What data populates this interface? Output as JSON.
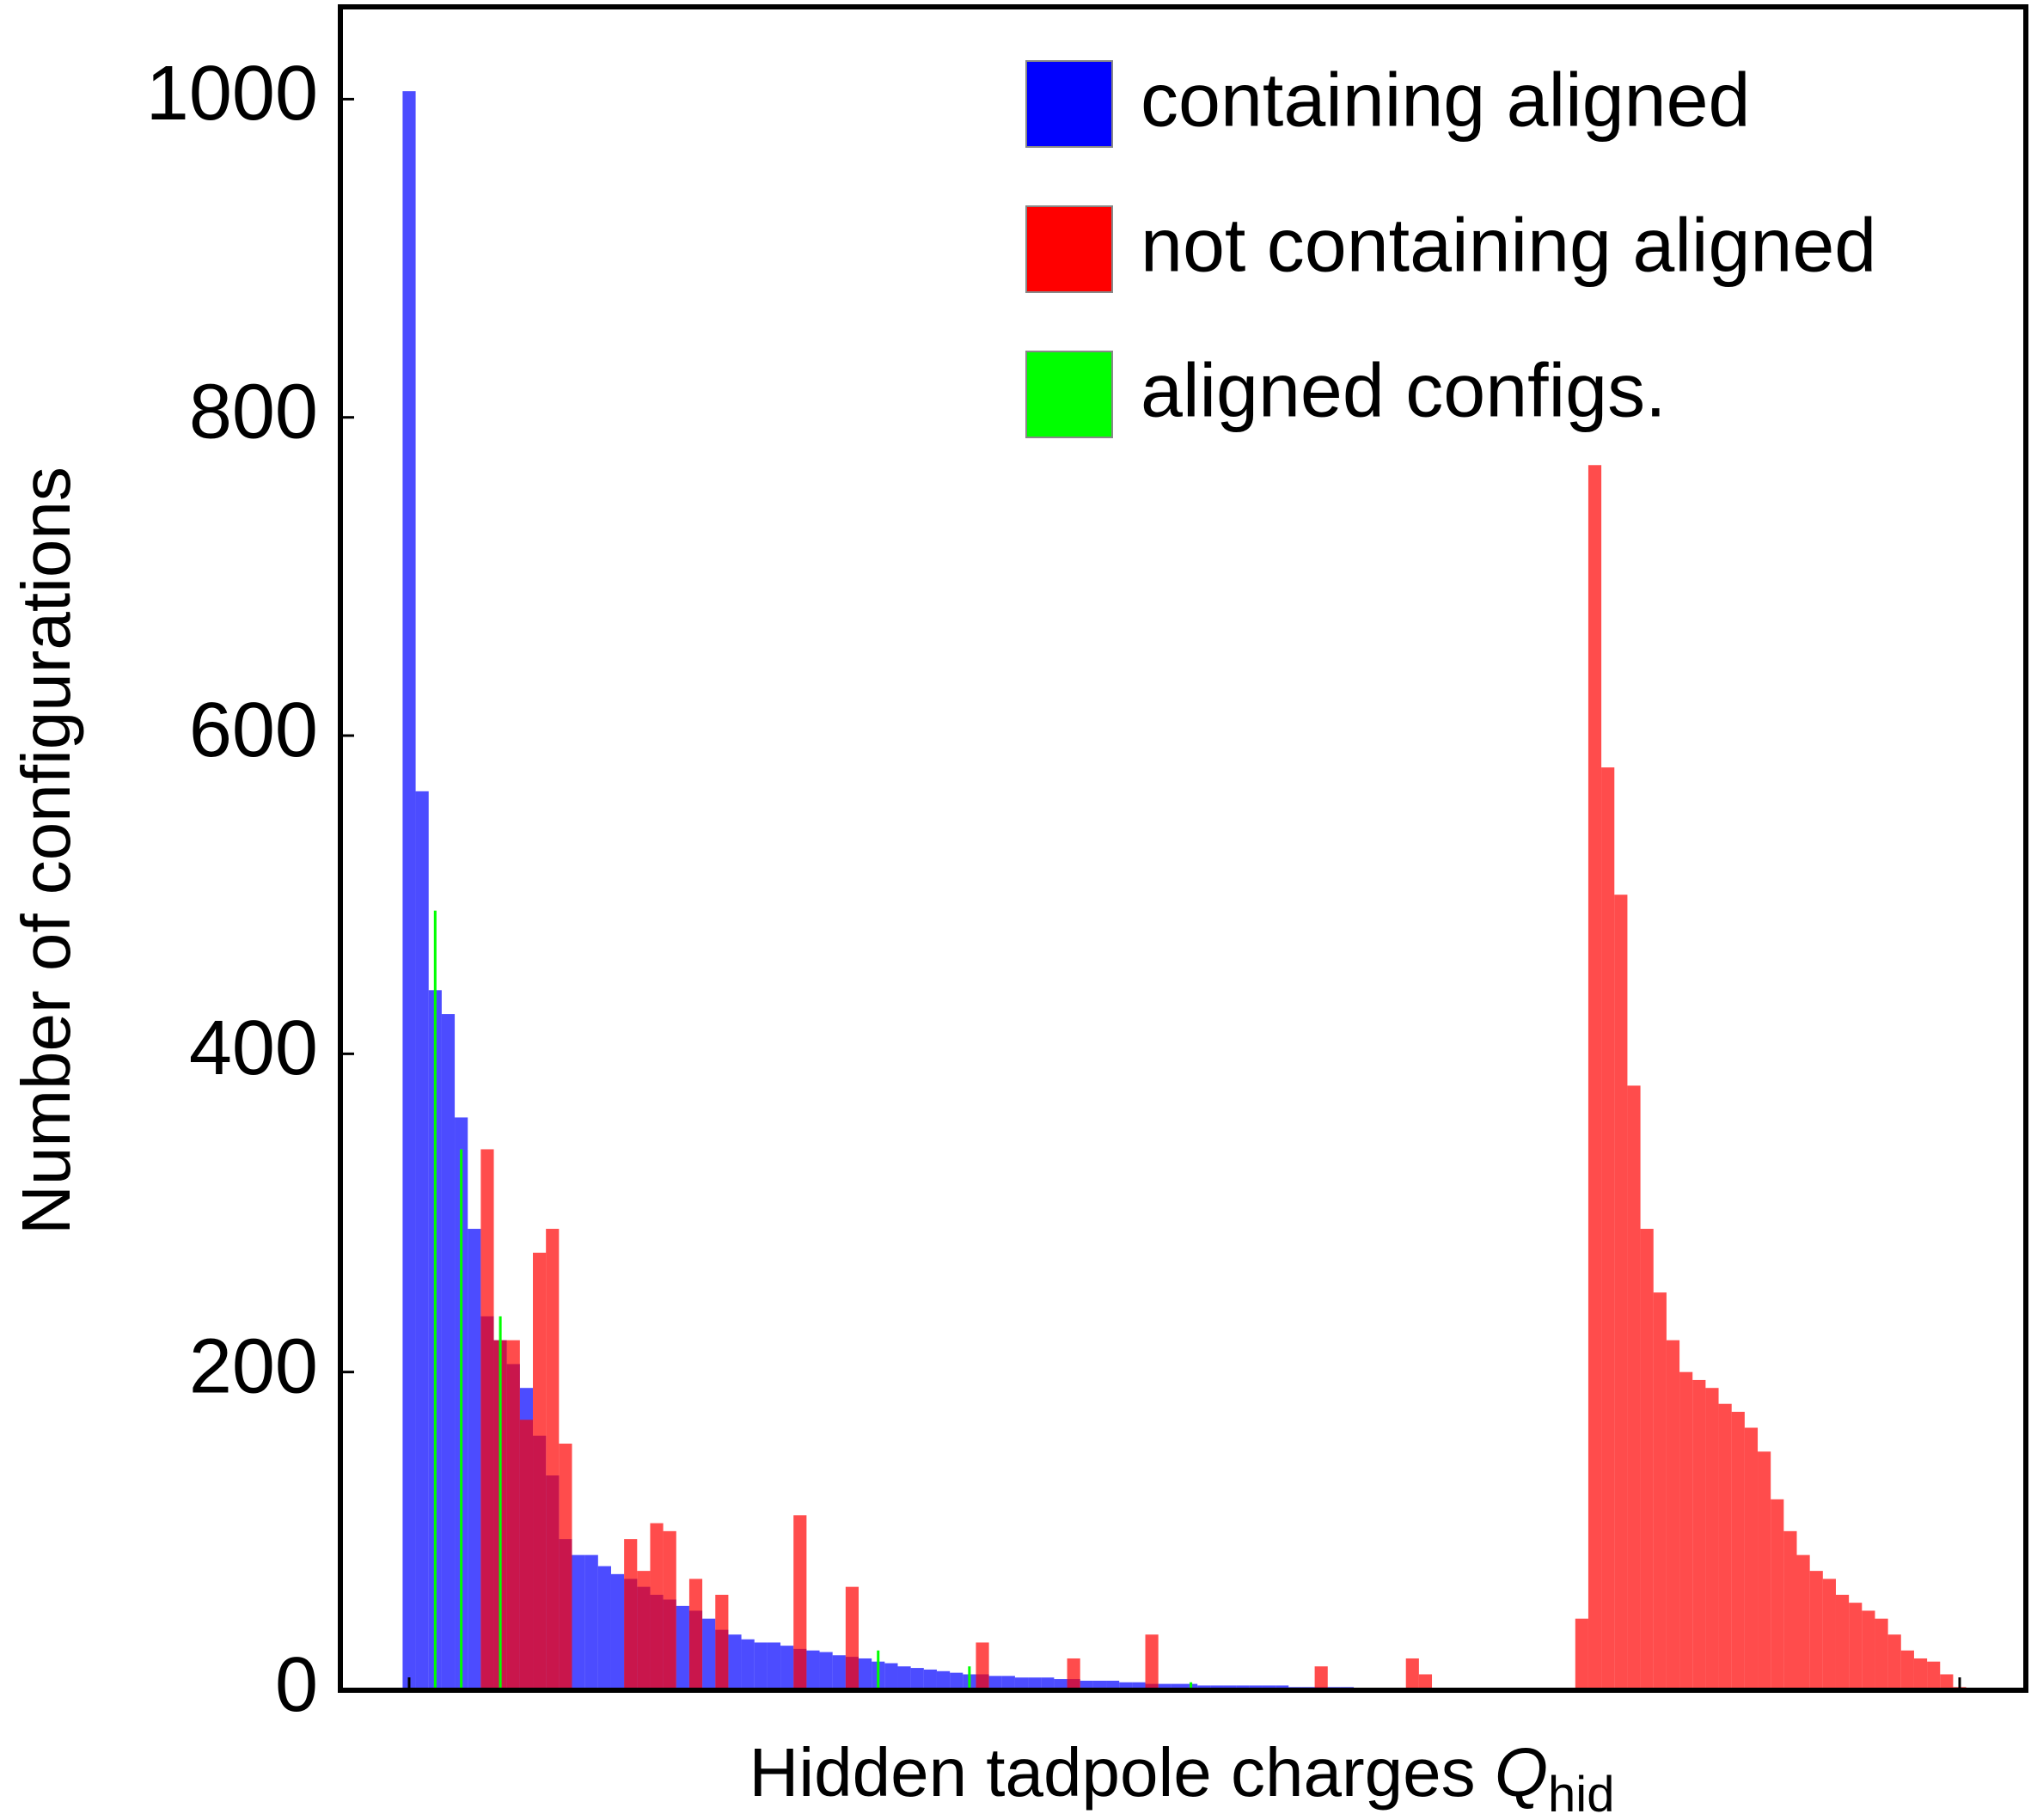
{
  "chart_data": {
    "type": "bar",
    "y_label": "Number of configurations",
    "x_label": {
      "text": "Hidden tadpole charges ",
      "symbol": "Q",
      "subscript": "hid"
    },
    "categories": [
      null,
      null,
      null,
      null,
      null,
      null,
      null,
      null,
      null,
      null,
      null,
      null,
      null,
      null,
      null,
      null,
      null,
      null,
      null,
      null,
      null,
      null,
      null,
      null,
      null,
      null,
      null,
      null,
      null,
      null,
      null,
      null,
      null,
      null,
      null,
      null,
      null,
      null,
      null,
      null,
      null,
      null,
      null,
      null,
      null,
      null,
      null,
      null,
      null,
      null,
      null,
      null,
      null,
      null,
      null,
      null,
      null,
      null,
      null,
      null,
      null,
      null,
      null,
      null,
      null,
      null,
      null,
      null,
      null,
      null,
      null,
      null,
      null,
      null,
      null,
      null,
      null,
      null,
      null,
      null,
      null,
      null,
      null,
      null,
      null,
      null,
      null,
      null,
      null,
      null,
      null,
      null,
      null,
      null,
      null,
      null,
      null,
      null,
      null,
      null,
      null,
      null,
      null,
      null,
      null,
      null,
      null,
      null,
      null,
      null,
      null,
      null,
      null,
      null,
      null,
      null,
      null,
      null,
      null,
      null
    ],
    "series": [
      {
        "name": "containing aligned",
        "color": "#0000ff",
        "values": [
          1005,
          565,
          440,
          425,
          360,
          290,
          235,
          220,
          205,
          190,
          160,
          135,
          95,
          85,
          85,
          78,
          73,
          70,
          65,
          60,
          57,
          53,
          50,
          45,
          38,
          35,
          32,
          30,
          30,
          28,
          26,
          25,
          24,
          22,
          21,
          20,
          18,
          17,
          15,
          14,
          13,
          12,
          11,
          10,
          10,
          9,
          9,
          8,
          8,
          8,
          7,
          7,
          6,
          6,
          6,
          5,
          5,
          4,
          4,
          4,
          4,
          3,
          3,
          3,
          3,
          3,
          3,
          3,
          2,
          2,
          2,
          2,
          2,
          1,
          1,
          1,
          1,
          1,
          1,
          0,
          0,
          0,
          0,
          0,
          0,
          0,
          0,
          0,
          0,
          0,
          0,
          0,
          0,
          0,
          0,
          0,
          0,
          0,
          0,
          0,
          0,
          0,
          0,
          0,
          0,
          0,
          0,
          0,
          0,
          0,
          0,
          0,
          0,
          0,
          0,
          0,
          0,
          0,
          0,
          0
        ]
      },
      {
        "name": "not containing aligned",
        "color": "#ff0000",
        "values": [
          0,
          0,
          0,
          0,
          0,
          0,
          340,
          220,
          220,
          170,
          275,
          290,
          155,
          0,
          0,
          0,
          0,
          95,
          75,
          105,
          100,
          0,
          70,
          0,
          60,
          0,
          0,
          0,
          0,
          0,
          110,
          0,
          0,
          0,
          65,
          0,
          0,
          0,
          0,
          0,
          0,
          0,
          0,
          0,
          30,
          0,
          0,
          0,
          0,
          0,
          0,
          20,
          0,
          0,
          0,
          0,
          0,
          35,
          0,
          0,
          0,
          0,
          0,
          0,
          0,
          0,
          0,
          0,
          0,
          0,
          15,
          0,
          0,
          0,
          0,
          0,
          0,
          20,
          10,
          0,
          0,
          0,
          0,
          0,
          0,
          0,
          0,
          0,
          0,
          0,
          45,
          770,
          580,
          500,
          380,
          290,
          250,
          220,
          200,
          195,
          190,
          180,
          175,
          165,
          150,
          120,
          100,
          85,
          75,
          70,
          60,
          55,
          50,
          45,
          35,
          25,
          20,
          18,
          10,
          2
        ]
      },
      {
        "name": "aligned configs.",
        "color": "#00ff00",
        "values": [
          0,
          0,
          490,
          0,
          340,
          0,
          0,
          235,
          0,
          0,
          0,
          0,
          0,
          0,
          0,
          0,
          0,
          0,
          0,
          0,
          0,
          0,
          0,
          0,
          0,
          0,
          0,
          0,
          0,
          0,
          0,
          0,
          0,
          0,
          0,
          0,
          25,
          0,
          0,
          0,
          0,
          0,
          0,
          15,
          0,
          0,
          0,
          0,
          0,
          0,
          0,
          0,
          0,
          0,
          0,
          0,
          0,
          0,
          0,
          0,
          5,
          0,
          0,
          0,
          0,
          0,
          0,
          0,
          0,
          0,
          0,
          0,
          0,
          0,
          0,
          0,
          0,
          0,
          0,
          0,
          0,
          0,
          0,
          0,
          0,
          0,
          0,
          0,
          0,
          0,
          0,
          0,
          0,
          0,
          0,
          0,
          0,
          0,
          0,
          0,
          0,
          0,
          0,
          0,
          0,
          0,
          0,
          0,
          0,
          0,
          0,
          0,
          0,
          0,
          0,
          0,
          0,
          0,
          0,
          0
        ]
      }
    ],
    "ylim": [
      0,
      1058
    ],
    "yticks": [
      0,
      200,
      400,
      600,
      800,
      1000
    ],
    "legend": "upper right"
  }
}
